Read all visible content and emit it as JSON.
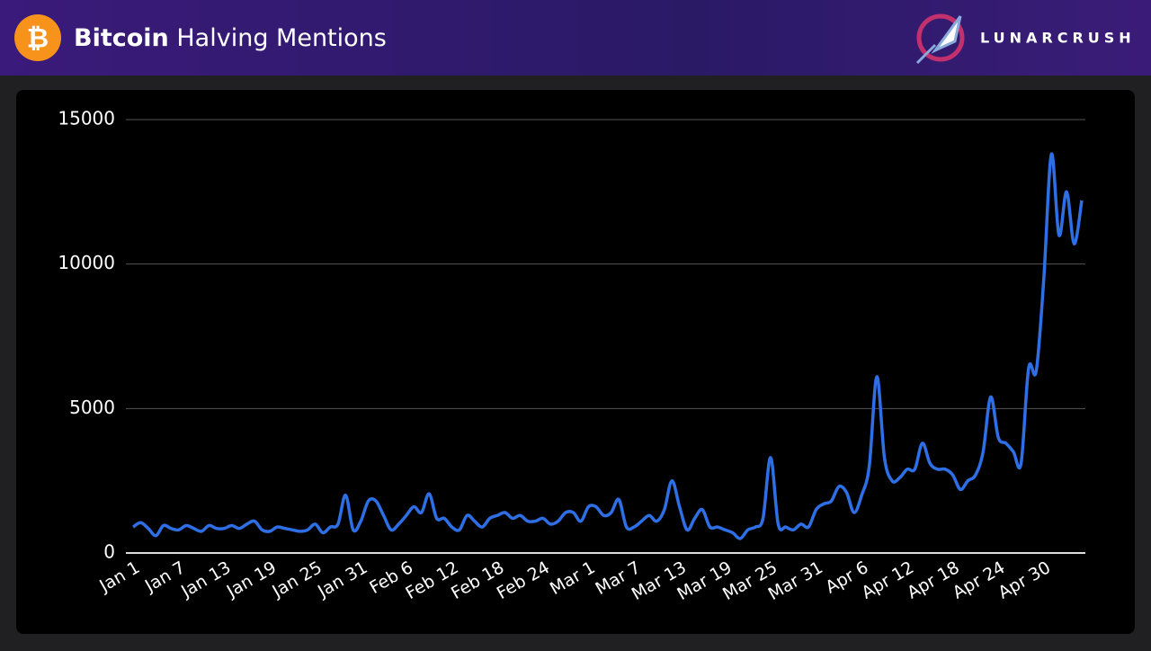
{
  "header": {
    "icon": "₿",
    "title_strong": "Bitcoin",
    "title_rest": "Halving Mentions",
    "brand": "LUNARCRUSH"
  },
  "chart_data": {
    "type": "line",
    "categories": [
      "Jan 1",
      null,
      null,
      null,
      null,
      null,
      "Jan 7",
      null,
      null,
      null,
      null,
      null,
      "Jan 13",
      null,
      null,
      null,
      null,
      null,
      "Jan 19",
      null,
      null,
      null,
      null,
      null,
      "Jan 25",
      null,
      null,
      null,
      null,
      null,
      "Jan 31",
      null,
      null,
      null,
      null,
      null,
      "Feb 6",
      null,
      null,
      null,
      null,
      null,
      "Feb 12",
      null,
      null,
      null,
      null,
      null,
      "Feb 18",
      null,
      null,
      null,
      null,
      null,
      "Feb 24",
      null,
      null,
      null,
      null,
      null,
      "Mar 1",
      null,
      null,
      null,
      null,
      null,
      "Mar 7",
      null,
      null,
      null,
      null,
      null,
      "Mar 13",
      null,
      null,
      null,
      null,
      null,
      "Mar 19",
      null,
      null,
      null,
      null,
      null,
      "Mar 25",
      null,
      null,
      null,
      null,
      null,
      "Mar 31",
      null,
      null,
      null,
      null,
      null,
      "Apr 6",
      null,
      null,
      null,
      null,
      null,
      "Apr 12",
      null,
      null,
      null,
      null,
      null,
      "Apr 18",
      null,
      null,
      null,
      null,
      null,
      "Apr 24",
      null,
      null,
      null,
      null,
      null,
      "Apr 30",
      null,
      null,
      null,
      null,
      null
    ],
    "values": [
      900,
      1050,
      850,
      600,
      950,
      850,
      800,
      950,
      850,
      750,
      950,
      850,
      850,
      950,
      850,
      1000,
      1100,
      800,
      750,
      900,
      850,
      800,
      750,
      800,
      1000,
      700,
      900,
      1000,
      2000,
      800,
      1100,
      1800,
      1800,
      1300,
      800,
      1000,
      1300,
      1600,
      1400,
      2050,
      1200,
      1200,
      900,
      800,
      1300,
      1100,
      900,
      1200,
      1300,
      1400,
      1200,
      1300,
      1100,
      1100,
      1200,
      1000,
      1100,
      1400,
      1400,
      1100,
      1600,
      1600,
      1300,
      1400,
      1850,
      900,
      900,
      1100,
      1300,
      1100,
      1500,
      2500,
      1600,
      800,
      1200,
      1500,
      900,
      900,
      800,
      700,
      500,
      800,
      900,
      1200,
      3300,
      1000,
      900,
      800,
      1000,
      900,
      1500,
      1700,
      1800,
      2300,
      2100,
      1400,
      2000,
      3000,
      6100,
      3300,
      2500,
      2600,
      2900,
      2900,
      3800,
      3100,
      2900,
      2900,
      2700,
      2200,
      2500,
      2700,
      3500,
      5400,
      4000,
      3800,
      3500,
      3100,
      6400,
      6300,
      9500,
      13800,
      11000,
      12500,
      10700,
      12200
    ],
    "color": "#2f6fe6",
    "ylim": [
      0,
      15000
    ],
    "yticks": [
      0,
      5000,
      10000,
      15000
    ],
    "grid": true
  }
}
